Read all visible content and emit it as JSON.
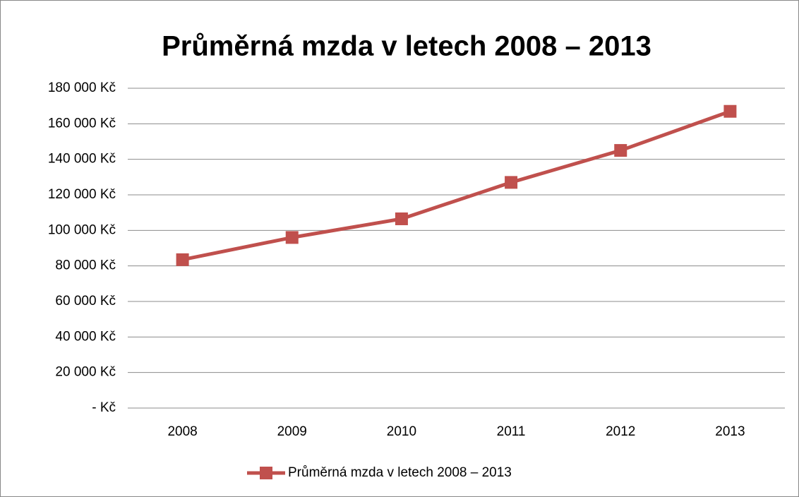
{
  "chart_data": {
    "type": "line",
    "title": "Průměrná mzda v letech 2008 – 2013",
    "categories": [
      "2008",
      "2009",
      "2010",
      "2011",
      "2012",
      "2013"
    ],
    "series": [
      {
        "name": "Průměrná mzda v letech 2008 – 2013",
        "color": "#c0504d",
        "values": [
          83500,
          96000,
          106500,
          127000,
          145000,
          167000
        ]
      }
    ],
    "ylim": [
      0,
      180000
    ],
    "yticks": [
      {
        "value": 0,
        "label": "- Kč"
      },
      {
        "value": 20000,
        "label": "20 000 Kč"
      },
      {
        "value": 40000,
        "label": "40 000 Kč"
      },
      {
        "value": 60000,
        "label": "60 000 Kč"
      },
      {
        "value": 80000,
        "label": "80 000 Kč"
      },
      {
        "value": 100000,
        "label": "100 000 Kč"
      },
      {
        "value": 120000,
        "label": "120 000 Kč"
      },
      {
        "value": 140000,
        "label": "140 000 Kč"
      },
      {
        "value": 160000,
        "label": "160 000 Kč"
      },
      {
        "value": 180000,
        "label": "180 000 Kč"
      }
    ],
    "grid": true,
    "legend": "bottom"
  }
}
